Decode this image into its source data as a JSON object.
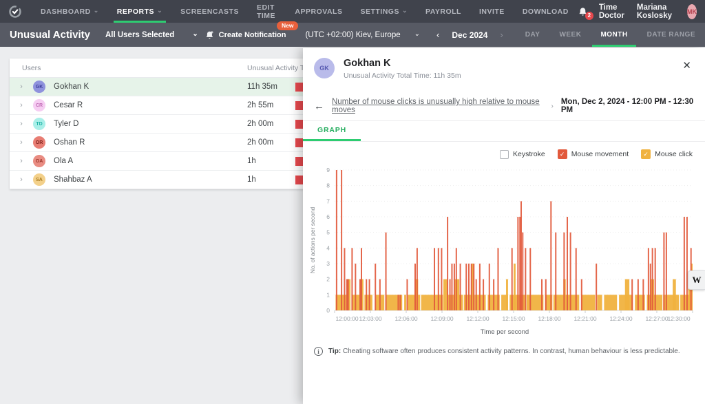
{
  "topnav": {
    "items": [
      {
        "label": "DASHBOARD",
        "caret": true
      },
      {
        "label": "REPORTS",
        "caret": true,
        "active": true
      },
      {
        "label": "SCREENCASTS"
      },
      {
        "label": "EDIT TIME"
      },
      {
        "label": "APPROVALS"
      },
      {
        "label": "SETTINGS",
        "caret": true
      },
      {
        "label": "PAYROLL"
      },
      {
        "label": "INVITE"
      },
      {
        "label": "DOWNLOAD"
      }
    ],
    "notification_count": "2",
    "brand": "Time Doctor",
    "user_name": "Mariana Koslosky",
    "user_initials": "MK"
  },
  "toolbar": {
    "title": "Unusual Activity",
    "users_filter": "All Users Selected",
    "create_notification": "Create Notification",
    "new_badge": "New",
    "timezone": "(UTC +02:00) Kiev, Europe",
    "prev_arrow": "‹",
    "next_arrow": "›",
    "period": "Dec 2024",
    "views": [
      "DAY",
      "WEEK",
      "MONTH",
      "DATE RANGE"
    ],
    "active_view": "MONTH"
  },
  "table": {
    "headers": {
      "users": "Users",
      "total": "Unusual Activity Total T"
    },
    "rows": [
      {
        "initials": "GK",
        "name": "Gokhan K",
        "time": "11h 35m",
        "avatar_bg": "#8f92dd",
        "avatar_fg": "#3d3d99",
        "selected": true
      },
      {
        "initials": "CR",
        "name": "Cesar R",
        "time": "2h 55m",
        "avatar_bg": "#f6cdf2",
        "avatar_fg": "#c06ab5",
        "selected": false
      },
      {
        "initials": "TD",
        "name": "Tyler D",
        "time": "2h 00m",
        "avatar_bg": "#a9efe8",
        "avatar_fg": "#1fb3a6",
        "selected": false
      },
      {
        "initials": "OR",
        "name": "Oshan R",
        "time": "2h 00m",
        "avatar_bg": "#e87d73",
        "avatar_fg": "#7e221b",
        "selected": false
      },
      {
        "initials": "OA",
        "name": "Ola A",
        "time": "1h",
        "avatar_bg": "#e98c82",
        "avatar_fg": "#99352a",
        "selected": false
      },
      {
        "initials": "SA",
        "name": "Shahbaz A",
        "time": "1h",
        "avatar_bg": "#f3d08a",
        "avatar_fg": "#a97b1f",
        "selected": false
      }
    ],
    "bar_color": "#e5484d"
  },
  "panel": {
    "initials": "GK",
    "name": "Gokhan K",
    "subtitle": "Unusual Activity Total Time: 11h 35m",
    "close": "✕",
    "back_arrow": "←",
    "breadcrumb_link": "Number of mouse clicks is unusually high relative to mouse moves",
    "breadcrumb_sep": "›",
    "breadcrumb_date": "Mon, Dec 2, 2024 - 12:00 PM - 12:30 PM",
    "tab": "GRAPH",
    "legend": [
      {
        "label": "Keystroke",
        "checked": false,
        "color": "#ffffff"
      },
      {
        "label": "Mouse movement",
        "checked": true,
        "color": "#e2593c"
      },
      {
        "label": "Mouse click",
        "checked": true,
        "color": "#f0b23f"
      }
    ],
    "tip_label": "Tip:",
    "tip_text": "Cheating software often produces consistent activity patterns. In contrast, human behaviour is less predictable.",
    "watermark": "W"
  },
  "chart_data": {
    "type": "bar",
    "title": "",
    "xlabel": "Time per second",
    "ylabel": "No. of actions per second",
    "ylim": [
      0,
      9
    ],
    "x_max_seconds": 1800,
    "grid": true,
    "legend_position": "top-right",
    "x_ticks": [
      "12:00:00",
      "12:03:00",
      "12:06:00",
      "12:09:00",
      "12:12:00",
      "12:15:00",
      "12:18:00",
      "12:21:00",
      "12:24:00",
      "12:27:00",
      "12:30:00"
    ],
    "series": [
      {
        "name": "Mouse click",
        "color": "#f0b23f",
        "style": "segments",
        "points": [
          [
            5,
            60,
            1
          ],
          [
            62,
            80,
            2
          ],
          [
            85,
            125,
            1
          ],
          [
            127,
            145,
            2
          ],
          [
            150,
            190,
            1
          ],
          [
            205,
            250,
            1
          ],
          [
            258,
            340,
            1
          ],
          [
            350,
            360,
            1
          ],
          [
            368,
            430,
            1
          ],
          [
            402,
            420,
            2
          ],
          [
            435,
            545,
            1
          ],
          [
            547,
            567,
            2
          ],
          [
            570,
            645,
            1
          ],
          [
            602,
            627,
            2
          ],
          [
            650,
            705,
            1
          ],
          [
            688,
            700,
            3
          ],
          [
            705,
            760,
            1
          ],
          [
            770,
            830,
            1
          ],
          [
            838,
            872,
            1
          ],
          [
            862,
            872,
            2
          ],
          [
            880,
            960,
            1
          ],
          [
            900,
            910,
            3
          ],
          [
            965,
            1050,
            1
          ],
          [
            1058,
            1095,
            1
          ],
          [
            1100,
            1230,
            1
          ],
          [
            1150,
            1162,
            2
          ],
          [
            1240,
            1310,
            1
          ],
          [
            1320,
            1345,
            1
          ],
          [
            1355,
            1420,
            1
          ],
          [
            1430,
            1500,
            1
          ],
          [
            1460,
            1482,
            2
          ],
          [
            1510,
            1560,
            1
          ],
          [
            1570,
            1648,
            1
          ],
          [
            1590,
            1606,
            2
          ],
          [
            1652,
            1732,
            1
          ],
          [
            1700,
            1716,
            2
          ],
          [
            1738,
            1800,
            1
          ],
          [
            1778,
            1800,
            2
          ],
          [
            1792,
            1800,
            3
          ]
        ]
      },
      {
        "name": "Mouse movement",
        "color": "#e2593c",
        "style": "spikes",
        "points": [
          [
            10,
            9
          ],
          [
            35,
            9
          ],
          [
            50,
            4
          ],
          [
            62,
            2
          ],
          [
            68,
            2
          ],
          [
            88,
            4
          ],
          [
            105,
            3
          ],
          [
            128,
            2
          ],
          [
            135,
            4
          ],
          [
            160,
            2
          ],
          [
            175,
            2
          ],
          [
            205,
            3
          ],
          [
            228,
            2
          ],
          [
            258,
            5
          ],
          [
            320,
            1
          ],
          [
            330,
            1
          ],
          [
            365,
            2
          ],
          [
            405,
            3
          ],
          [
            415,
            4
          ],
          [
            502,
            4
          ],
          [
            522,
            4
          ],
          [
            538,
            4
          ],
          [
            568,
            6
          ],
          [
            580,
            2
          ],
          [
            590,
            3
          ],
          [
            602,
            3
          ],
          [
            612,
            4
          ],
          [
            632,
            3
          ],
          [
            662,
            3
          ],
          [
            675,
            3
          ],
          [
            688,
            3
          ],
          [
            700,
            3
          ],
          [
            712,
            2
          ],
          [
            730,
            3
          ],
          [
            748,
            2
          ],
          [
            778,
            3
          ],
          [
            800,
            2
          ],
          [
            822,
            4
          ],
          [
            892,
            4
          ],
          [
            922,
            6
          ],
          [
            932,
            6
          ],
          [
            938,
            7
          ],
          [
            946,
            5
          ],
          [
            960,
            4
          ],
          [
            984,
            4
          ],
          [
            1042,
            2
          ],
          [
            1062,
            2
          ],
          [
            1088,
            7
          ],
          [
            1112,
            5
          ],
          [
            1154,
            5
          ],
          [
            1170,
            6
          ],
          [
            1186,
            5
          ],
          [
            1214,
            4
          ],
          [
            1242,
            2
          ],
          [
            1316,
            3
          ],
          [
            1496,
            2
          ],
          [
            1526,
            2
          ],
          [
            1552,
            2
          ],
          [
            1578,
            4
          ],
          [
            1588,
            3
          ],
          [
            1598,
            4
          ],
          [
            1612,
            4
          ],
          [
            1656,
            5
          ],
          [
            1668,
            5
          ],
          [
            1758,
            6
          ],
          [
            1772,
            6
          ],
          [
            1792,
            4
          ]
        ]
      }
    ],
    "series_keystroke": {
      "name": "Keystroke",
      "visible": false
    }
  }
}
